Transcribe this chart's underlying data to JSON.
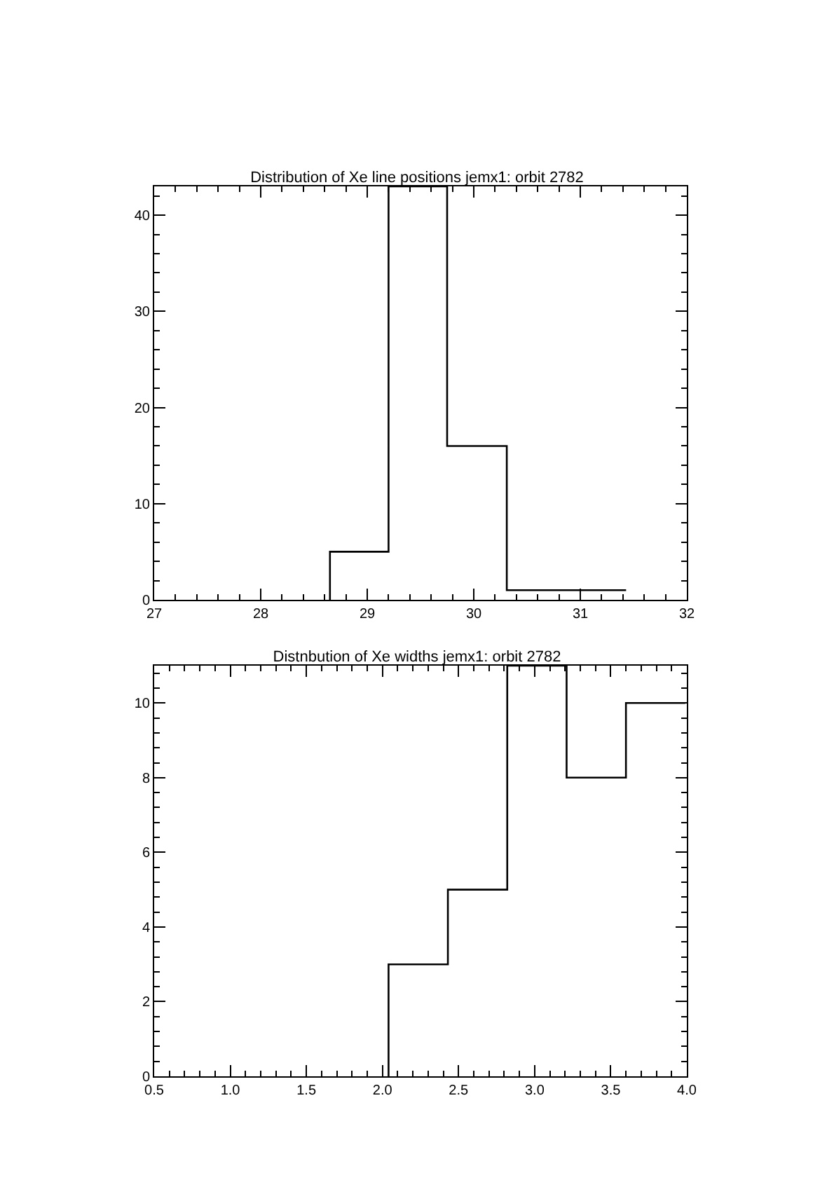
{
  "chart_data": [
    {
      "type": "histogram",
      "title": "Distribution of Xe line positions jemx1: orbit 2782",
      "bins": [
        28.65,
        29.2,
        29.75,
        30.31,
        30.86,
        31.43
      ],
      "values": [
        5,
        43,
        16,
        1,
        1
      ],
      "color": "#000000",
      "xlim": [
        27,
        32
      ],
      "xticks": [
        27,
        28,
        29,
        30,
        31,
        32
      ],
      "ylim": [
        0,
        43
      ],
      "yticks": [
        0,
        10,
        20,
        30,
        40
      ],
      "grid": false
    },
    {
      "type": "histogram",
      "title": "Distnbution of Xe widths jemx1: orbit 2782",
      "bins": [
        2.04,
        2.43,
        2.82,
        3.21,
        3.6,
        3.99
      ],
      "values": [
        3,
        5,
        11,
        8,
        10
      ],
      "color": "#000000",
      "xlim": [
        0.5,
        4.0
      ],
      "xticks": [
        {
          "value": 0.5,
          "label": "0.5"
        },
        {
          "value": 1,
          "label": "1.0"
        },
        {
          "value": 1.5,
          "label": "1.5"
        },
        {
          "value": 2,
          "label": "2.0"
        },
        {
          "value": 2.5,
          "label": "2.5"
        },
        {
          "value": 3,
          "label": "3.0"
        },
        {
          "value": 3.5,
          "label": "3.5"
        },
        {
          "value": 4,
          "label": "4.0"
        }
      ],
      "ylim": [
        0,
        11
      ],
      "yticks": [
        0,
        2,
        4,
        6,
        8,
        10
      ],
      "grid": false
    }
  ]
}
